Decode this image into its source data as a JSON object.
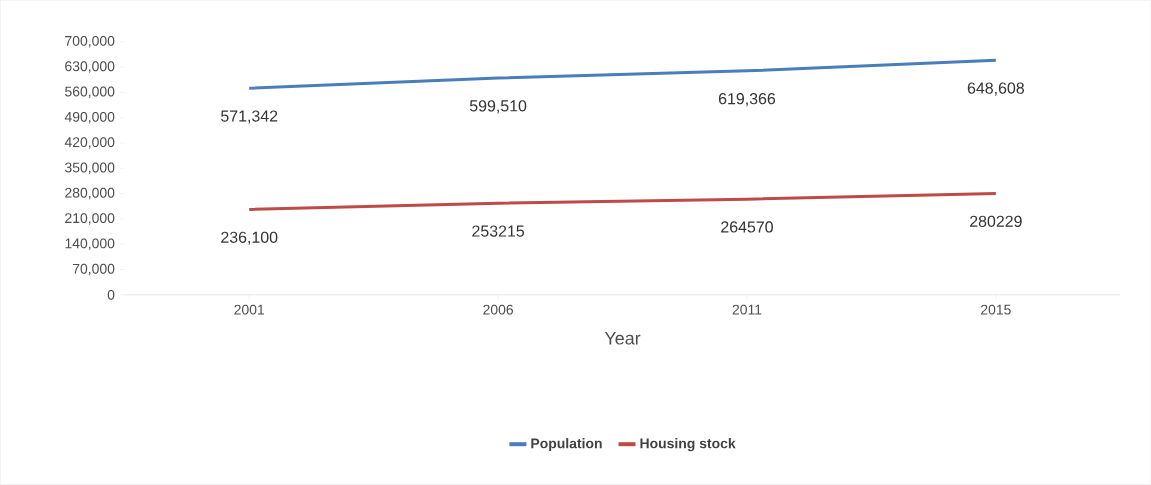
{
  "chart_data": {
    "type": "line",
    "xlabel": "Year",
    "categories": [
      "2001",
      "2006",
      "2011",
      "2015"
    ],
    "series": [
      {
        "name": "Population",
        "color": "#4a7ebb",
        "values": [
          571342,
          599510,
          619366,
          648608
        ],
        "value_labels": [
          "571,342",
          "599,510",
          "619,366",
          "648,608"
        ]
      },
      {
        "name": "Housing stock",
        "color": "#be4b48",
        "values": [
          236100,
          253215,
          264570,
          280229
        ],
        "value_labels": [
          "236,100",
          "253215",
          "264570",
          "280229"
        ]
      }
    ],
    "ylim": [
      0,
      700000
    ],
    "yticks": [
      {
        "value": 0,
        "label": "0"
      },
      {
        "value": 70000,
        "label": "70,000"
      },
      {
        "value": 140000,
        "label": "140,000"
      },
      {
        "value": 210000,
        "label": "210,000"
      },
      {
        "value": 280000,
        "label": "280,000"
      },
      {
        "value": 350000,
        "label": "350,000"
      },
      {
        "value": 420000,
        "label": "420,000"
      },
      {
        "value": 490000,
        "label": "490,000"
      },
      {
        "value": 560000,
        "label": "560,000"
      },
      {
        "value": 630000,
        "label": "630,000"
      },
      {
        "value": 700000,
        "label": "700,000"
      }
    ],
    "grid": false,
    "legend": "bottom",
    "marker": "none",
    "line_style": "solid"
  }
}
